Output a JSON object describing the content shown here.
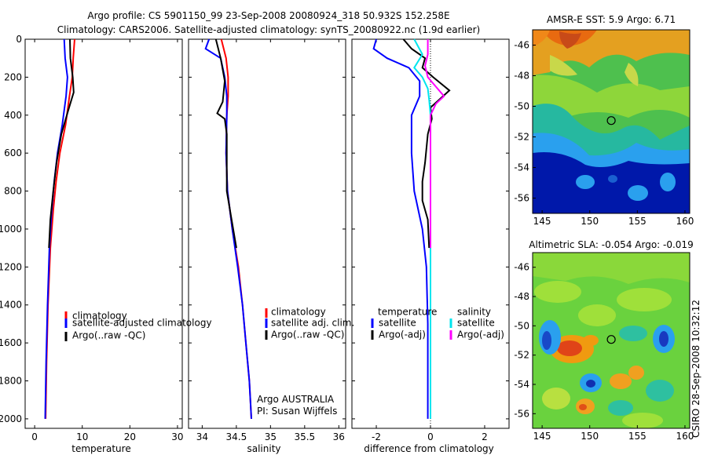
{
  "figure": {
    "title_line1": "Argo profile: CS 5901150_99 23-Sep-2008 20080924_318 50.932S 152.258E",
    "title_line2": "Climatology: CARS2006. Satellite-adjusted climatology: synTS_20080922.nc (1.9d earlier)",
    "credit_line1": "Argo AUSTRALIA",
    "credit_line2": "PI: Susan Wijffels",
    "side_stamp": "CSIRO  28-Sep-2008 10:32:12"
  },
  "colors": {
    "climatology": "#ff0000",
    "satellite": "#0000ff",
    "argo": "#000000",
    "salinity_satellite": "#00e5ee",
    "salinity_argo": "#ff00ff"
  },
  "chart_data": [
    {
      "id": "temperature",
      "type": "line",
      "xlabel": "temperature",
      "ylabel": "",
      "xlim": [
        -2,
        31
      ],
      "ylim": [
        2050,
        0
      ],
      "xticks": [
        0,
        10,
        20,
        30
      ],
      "yticks": [
        0,
        200,
        400,
        600,
        800,
        1000,
        1200,
        1400,
        1600,
        1800,
        2000
      ],
      "legend": [
        "climatology",
        "satellite-adjusted climatology",
        "Argo(..raw -QC)"
      ],
      "series": [
        {
          "name": "climatology",
          "color": "#ff0000",
          "points": [
            [
              8.4,
              0
            ],
            [
              8.1,
              100
            ],
            [
              7.9,
              200
            ],
            [
              7.3,
              300
            ],
            [
              6.5,
              450
            ],
            [
              5.3,
              600
            ],
            [
              4.5,
              750
            ],
            [
              3.9,
              900
            ],
            [
              3.3,
              1100
            ],
            [
              2.8,
              1400
            ],
            [
              2.5,
              1700
            ],
            [
              2.3,
              2000
            ]
          ]
        },
        {
          "name": "satellite-adjusted climatology",
          "color": "#0000ff",
          "points": [
            [
              6.2,
              0
            ],
            [
              6.4,
              100
            ],
            [
              6.9,
              200
            ],
            [
              6.6,
              300
            ],
            [
              5.8,
              450
            ],
            [
              4.8,
              600
            ],
            [
              4.1,
              750
            ],
            [
              3.6,
              900
            ],
            [
              3.1,
              1100
            ],
            [
              2.7,
              1400
            ],
            [
              2.4,
              1700
            ],
            [
              2.2,
              2000
            ]
          ]
        },
        {
          "name": "Argo(..raw -QC)",
          "color": "#000000",
          "points": [
            [
              7.4,
              0
            ],
            [
              7.5,
              100
            ],
            [
              8.0,
              200
            ],
            [
              8.2,
              280
            ],
            [
              7.0,
              380
            ],
            [
              5.6,
              500
            ],
            [
              4.6,
              650
            ],
            [
              3.9,
              800
            ],
            [
              3.3,
              950
            ],
            [
              3.0,
              1100
            ]
          ]
        }
      ]
    },
    {
      "id": "salinity",
      "type": "line",
      "xlabel": "salinity",
      "ylabel": "",
      "xlim": [
        33.8,
        36.1
      ],
      "ylim": [
        2050,
        0
      ],
      "xticks": [
        34,
        34.5,
        35,
        35.5,
        36
      ],
      "yticks": [],
      "legend": [
        "climatology",
        "satellite adj. clim.",
        "Argo(..raw -QC)"
      ],
      "series": [
        {
          "name": "climatology",
          "color": "#ff0000",
          "points": [
            [
              34.28,
              0
            ],
            [
              34.35,
              100
            ],
            [
              34.38,
              200
            ],
            [
              34.38,
              300
            ],
            [
              34.36,
              400
            ],
            [
              34.35,
              600
            ],
            [
              34.37,
              800
            ],
            [
              34.44,
              1000
            ],
            [
              34.53,
              1200
            ],
            [
              34.59,
              1400
            ],
            [
              34.64,
              1600
            ],
            [
              34.69,
              1800
            ],
            [
              34.72,
              2000
            ]
          ]
        },
        {
          "name": "satellite adj. clim.",
          "color": "#0000ff",
          "points": [
            [
              34.1,
              0
            ],
            [
              34.05,
              50
            ],
            [
              34.27,
              100
            ],
            [
              34.33,
              200
            ],
            [
              34.36,
              300
            ],
            [
              34.36,
              400
            ],
            [
              34.35,
              600
            ],
            [
              34.37,
              800
            ],
            [
              34.44,
              1000
            ],
            [
              34.52,
              1200
            ],
            [
              34.59,
              1400
            ],
            [
              34.64,
              1600
            ],
            [
              34.69,
              1800
            ],
            [
              34.72,
              2000
            ]
          ]
        },
        {
          "name": "Argo(..raw -QC)",
          "color": "#000000",
          "points": [
            [
              34.2,
              0
            ],
            [
              34.27,
              100
            ],
            [
              34.33,
              220
            ],
            [
              34.3,
              330
            ],
            [
              34.22,
              390
            ],
            [
              34.33,
              420
            ],
            [
              34.36,
              500
            ],
            [
              34.36,
              650
            ],
            [
              34.36,
              800
            ],
            [
              34.43,
              950
            ],
            [
              34.5,
              1100
            ]
          ]
        }
      ]
    },
    {
      "id": "difference",
      "type": "line",
      "xlabel": "difference from climatology",
      "ylabel": "",
      "xlim": [
        -2.9,
        2.9
      ],
      "ylim": [
        2050,
        0
      ],
      "xticks": [
        -2,
        0,
        2
      ],
      "yticks": [],
      "zero_line": true,
      "legend_headers": [
        "temperature",
        "salinity"
      ],
      "legend": [
        "satellite",
        "Argo(-adj)",
        "satellite",
        "Argo(-adj)"
      ],
      "series": [
        {
          "name": "temperature satellite",
          "color": "#0000ff",
          "points": [
            [
              -2.0,
              0
            ],
            [
              -2.1,
              50
            ],
            [
              -1.6,
              100
            ],
            [
              -0.8,
              150
            ],
            [
              -0.4,
              220
            ],
            [
              -0.4,
              300
            ],
            [
              -0.7,
              400
            ],
            [
              -0.7,
              600
            ],
            [
              -0.6,
              800
            ],
            [
              -0.3,
              1000
            ],
            [
              -0.15,
              1200
            ],
            [
              -0.1,
              1500
            ],
            [
              -0.1,
              1800
            ],
            [
              -0.1,
              2000
            ]
          ]
        },
        {
          "name": "temperature Argo(-adj)",
          "color": "#000000",
          "points": [
            [
              -1.0,
              0
            ],
            [
              -0.7,
              50
            ],
            [
              -0.2,
              100
            ],
            [
              -0.3,
              150
            ],
            [
              0.1,
              200
            ],
            [
              0.7,
              270
            ],
            [
              0.0,
              360
            ],
            [
              0.05,
              420
            ],
            [
              -0.1,
              500
            ],
            [
              -0.2,
              650
            ],
            [
              -0.3,
              750
            ],
            [
              -0.3,
              850
            ],
            [
              -0.1,
              950
            ],
            [
              -0.05,
              1100
            ]
          ]
        },
        {
          "name": "salinity satellite",
          "color": "#00e5ee",
          "points": [
            [
              -0.6,
              0
            ],
            [
              -0.3,
              80
            ],
            [
              -0.6,
              150
            ],
            [
              -0.3,
              200
            ],
            [
              -0.1,
              260
            ],
            [
              -0.05,
              320
            ],
            [
              0.0,
              400
            ],
            [
              0.0,
              600
            ],
            [
              0.0,
              800
            ],
            [
              0.0,
              1000
            ],
            [
              0.0,
              1500
            ],
            [
              0.0,
              2000
            ]
          ]
        },
        {
          "name": "salinity Argo(-adj)",
          "color": "#ff00ff",
          "points": [
            [
              -0.1,
              0
            ],
            [
              -0.1,
              80
            ],
            [
              -0.2,
              140
            ],
            [
              -0.1,
              200
            ],
            [
              0.2,
              250
            ],
            [
              0.5,
              300
            ],
            [
              0.2,
              340
            ],
            [
              0.0,
              400
            ],
            [
              0.0,
              550
            ],
            [
              0.0,
              700
            ],
            [
              0.0,
              900
            ],
            [
              0.0,
              1100
            ]
          ]
        }
      ]
    },
    {
      "id": "sst_map",
      "type": "heatmap",
      "title": "AMSR-E SST: 5.9  Argo: 6.71",
      "xlim": [
        144,
        160.5
      ],
      "ylim": [
        -57,
        -45
      ],
      "xticks": [
        145,
        150,
        155,
        160
      ],
      "yticks": [
        -46,
        -48,
        -50,
        -52,
        -54,
        -56
      ],
      "float_position": [
        152.258,
        -50.932
      ]
    },
    {
      "id": "sla_map",
      "type": "heatmap",
      "title": "Altimetric SLA: -0.054  Argo: -0.019",
      "xlim": [
        144,
        160.5
      ],
      "ylim": [
        -57,
        -45
      ],
      "xticks": [
        145,
        150,
        155,
        160
      ],
      "yticks": [
        -46,
        -48,
        -50,
        -52,
        -54,
        -56
      ],
      "float_position": [
        152.258,
        -50.932
      ]
    }
  ]
}
